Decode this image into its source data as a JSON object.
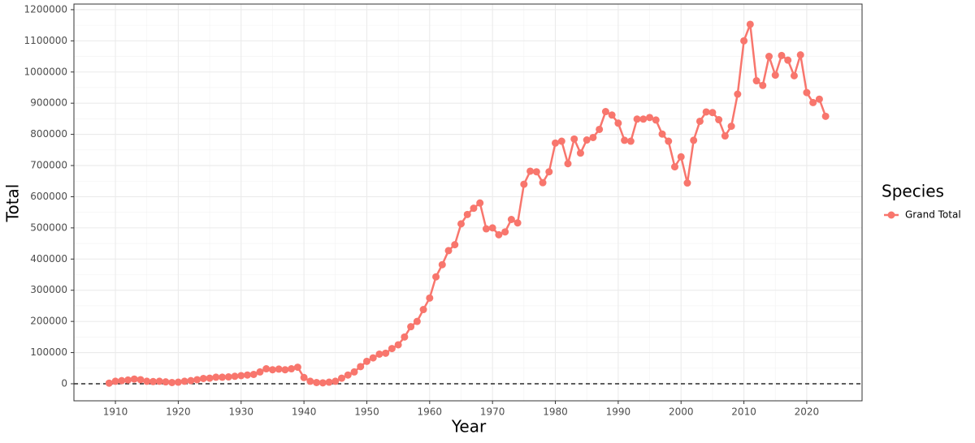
{
  "chart_data": {
    "type": "line",
    "x_label": "Year",
    "y_label": "Total",
    "legend_title": "Species",
    "x": [
      1909,
      1910,
      1911,
      1912,
      1913,
      1914,
      1915,
      1916,
      1917,
      1918,
      1919,
      1920,
      1921,
      1922,
      1923,
      1924,
      1925,
      1926,
      1927,
      1928,
      1929,
      1930,
      1931,
      1932,
      1933,
      1934,
      1935,
      1936,
      1937,
      1938,
      1939,
      1940,
      1941,
      1942,
      1943,
      1944,
      1945,
      1946,
      1947,
      1948,
      1949,
      1950,
      1951,
      1952,
      1953,
      1954,
      1955,
      1956,
      1957,
      1958,
      1959,
      1960,
      1961,
      1962,
      1963,
      1964,
      1965,
      1966,
      1967,
      1968,
      1969,
      1970,
      1971,
      1972,
      1973,
      1974,
      1975,
      1976,
      1977,
      1978,
      1979,
      1980,
      1981,
      1982,
      1983,
      1984,
      1985,
      1986,
      1987,
      1988,
      1989,
      1990,
      1991,
      1992,
      1993,
      1994,
      1995,
      1996,
      1997,
      1998,
      1999,
      2000,
      2001,
      2002,
      2003,
      2004,
      2005,
      2006,
      2007,
      2008,
      2009,
      2010,
      2011,
      2012,
      2013,
      2014,
      2015,
      2016,
      2017,
      2018,
      2019,
      2020,
      2021,
      2022,
      2023
    ],
    "series": [
      {
        "name": "Grand Total",
        "color": "#f8766d",
        "values": [
          2000,
          8000,
          10000,
          12000,
          15000,
          13000,
          8000,
          7000,
          8000,
          6000,
          4000,
          5000,
          8000,
          10000,
          13000,
          17000,
          18000,
          21000,
          21000,
          22000,
          24000,
          26000,
          28000,
          30000,
          38000,
          48000,
          45000,
          47000,
          45000,
          48000,
          53000,
          20000,
          8000,
          4000,
          3000,
          5000,
          8000,
          18000,
          28000,
          38000,
          55000,
          72000,
          83000,
          95000,
          98000,
          113000,
          125000,
          150000,
          183000,
          200000,
          238000,
          275000,
          343000,
          382000,
          427000,
          446000,
          513000,
          543000,
          563000,
          580000,
          497000,
          500000,
          478000,
          487000,
          527000,
          516000,
          640000,
          682000,
          680000,
          645000,
          680000,
          772000,
          778000,
          706000,
          785000,
          740000,
          782000,
          790000,
          816000,
          873000,
          862000,
          836000,
          781000,
          778000,
          849000,
          849000,
          854000,
          846000,
          801000,
          778000,
          696000,
          728000,
          644000,
          781000,
          842000,
          872000,
          870000,
          847000,
          795000,
          826000,
          929000,
          1100000,
          1153000,
          972000,
          957000,
          1050000,
          990000,
          1053000,
          1038000,
          988000,
          1055000,
          934000,
          902000,
          913000,
          858000
        ]
      }
    ],
    "xlim": [
      1903.4,
      2028.8
    ],
    "xticks": [
      1910,
      1920,
      1930,
      1940,
      1950,
      1960,
      1970,
      1980,
      1990,
      2000,
      2010,
      2020
    ],
    "ylim": [
      -54700,
      1218000
    ],
    "yticks": [
      0,
      100000,
      200000,
      300000,
      400000,
      500000,
      600000,
      700000,
      800000,
      900000,
      1000000,
      1100000,
      1200000
    ],
    "grid": true,
    "hline": 0,
    "legend": "right"
  }
}
